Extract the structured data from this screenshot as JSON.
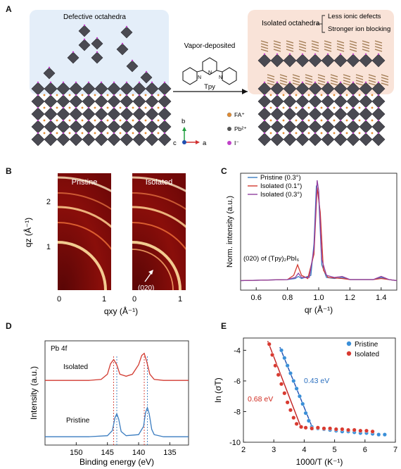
{
  "panelA": {
    "letter": "A",
    "left_title": "Defective octahedra",
    "right_title": "Isolated octahedra",
    "benefit1": "Less ionic defects",
    "benefit2": "Stronger ion blocking",
    "process": "Vapor-deposited",
    "molecule": "Tpy",
    "axis_b": "b",
    "axis_c": "c",
    "axis_a": "a",
    "legend": [
      "FA⁺",
      "Pb²⁺",
      "I⁻"
    ],
    "colors": {
      "left_bg": "#e4eef9",
      "right_bg": "#f9e3d8",
      "octa": "#4a4a52",
      "iodide": "#c040c8",
      "fa": "#e08a30"
    }
  },
  "panelB": {
    "letter": "B",
    "left_label": "Pristine",
    "right_label": "Isolated",
    "annotation": "(020)",
    "ylabel": "qz (Å⁻¹)",
    "xlabel": "qxy (Å⁻¹)",
    "yticks": [
      "2",
      "1"
    ],
    "xticks_left": [
      "0",
      "1"
    ],
    "xticks_right": [
      "0",
      "1"
    ]
  },
  "panelC": {
    "letter": "C",
    "annotation": "(020) of (Tpy)₂PbI₆",
    "legend_pristine": "Pristine (0.3°)",
    "legend_iso01": "Isolated (0.1°)",
    "legend_iso03": "Isolated (0.3°)",
    "xlabel": "qr (Å⁻¹)",
    "ylabel": "Norm. intensity (a.u.)"
  },
  "panelD": {
    "letter": "D",
    "label": "Pb 4f",
    "isolated": "Isolated",
    "pristine": "Pristine",
    "xlabel": "Binding energy (eV)",
    "ylabel": "Intensity (a.u.)"
  },
  "panelE": {
    "letter": "E",
    "legend_pristine": "Pristine",
    "legend_isolated": "Isolated",
    "ea_pristine": "0.43 eV",
    "ea_isolated": "0.68 eV",
    "xlabel": "1000/T (K⁻¹)",
    "ylabel": "ln (σT)"
  },
  "chart_data": [
    {
      "panel": "C",
      "type": "line",
      "xlim": [
        0.5,
        1.5
      ],
      "xticks": [
        0.6,
        0.8,
        1.0,
        1.2,
        1.4
      ],
      "series": [
        {
          "name": "Pristine (0.3°)",
          "color": "#3a7cc0",
          "x": [
            0.5,
            0.8,
            0.85,
            0.87,
            0.89,
            0.95,
            0.97,
            0.985,
            1.0,
            1.02,
            1.05,
            1.1,
            1.15,
            1.2,
            1.35,
            1.4,
            1.45,
            1.5
          ],
          "y": [
            0.05,
            0.06,
            0.07,
            0.09,
            0.07,
            0.1,
            0.4,
            0.95,
            0.85,
            0.2,
            0.08,
            0.07,
            0.08,
            0.06,
            0.06,
            0.08,
            0.06,
            0.05
          ]
        },
        {
          "name": "Isolated (0.1°)",
          "color": "#d23a30",
          "x": [
            0.5,
            0.8,
            0.84,
            0.865,
            0.89,
            0.93,
            0.97,
            0.99,
            1.01,
            1.03,
            1.06,
            1.15,
            1.2,
            1.35,
            1.4,
            1.45,
            1.5
          ],
          "y": [
            0.05,
            0.06,
            0.1,
            0.2,
            0.1,
            0.07,
            0.3,
            0.93,
            0.7,
            0.15,
            0.08,
            0.07,
            0.06,
            0.06,
            0.07,
            0.06,
            0.05
          ]
        },
        {
          "name": "Isolated (0.3°)",
          "color": "#9040a0",
          "x": [
            0.5,
            0.8,
            0.85,
            0.87,
            0.89,
            0.94,
            0.97,
            0.99,
            1.0,
            1.02,
            1.05,
            1.1,
            1.15,
            1.2,
            1.35,
            1.4,
            1.45,
            1.5
          ],
          "y": [
            0.05,
            0.06,
            0.08,
            0.12,
            0.08,
            0.08,
            0.35,
            1.0,
            0.9,
            0.25,
            0.1,
            0.08,
            0.09,
            0.06,
            0.06,
            0.09,
            0.06,
            0.05
          ]
        }
      ]
    },
    {
      "panel": "D",
      "type": "line",
      "xlim": [
        155,
        132
      ],
      "xticks": [
        150,
        145,
        140,
        135
      ],
      "reference_lines": [
        144.0,
        139.1,
        143.5,
        138.6
      ],
      "series": [
        {
          "name": "Isolated",
          "color": "#d23a30",
          "x": [
            155,
            148,
            146,
            145,
            144.5,
            144.0,
            143.5,
            143.0,
            142,
            141,
            140,
            139.5,
            139.1,
            138.7,
            138.2,
            137.5,
            136,
            132
          ],
          "y": [
            0.62,
            0.62,
            0.63,
            0.68,
            0.78,
            0.82,
            0.77,
            0.68,
            0.66,
            0.68,
            0.77,
            0.86,
            0.88,
            0.8,
            0.68,
            0.63,
            0.62,
            0.62
          ]
        },
        {
          "name": "Pristine",
          "color": "#3a7cc0",
          "x": [
            155,
            148,
            145,
            144.2,
            143.8,
            143.5,
            143.2,
            142.8,
            142,
            140,
            139.2,
            138.9,
            138.6,
            138.3,
            137.9,
            137.5,
            136,
            132
          ],
          "y": [
            0.08,
            0.08,
            0.09,
            0.14,
            0.26,
            0.3,
            0.25,
            0.13,
            0.09,
            0.1,
            0.18,
            0.31,
            0.36,
            0.3,
            0.15,
            0.1,
            0.08,
            0.08
          ]
        }
      ]
    },
    {
      "panel": "E",
      "type": "scatter",
      "xlim": [
        2,
        7
      ],
      "ylim": [
        -10,
        -3.2
      ],
      "xticks": [
        2,
        3,
        4,
        5,
        6,
        7
      ],
      "yticks": [
        -4,
        -6,
        -8,
        -10
      ],
      "series": [
        {
          "name": "Pristine",
          "color": "#3a8fd8",
          "x": [
            3.25,
            3.35,
            3.45,
            3.55,
            3.65,
            3.75,
            3.85,
            3.95,
            4.05,
            4.15,
            4.25,
            4.45,
            4.65,
            4.85,
            5.05,
            5.25,
            5.45,
            5.65,
            5.85,
            6.05,
            6.25,
            6.45,
            6.65
          ],
          "y": [
            -4.0,
            -4.5,
            -5.0,
            -5.5,
            -6.0,
            -6.5,
            -7.0,
            -7.5,
            -8.1,
            -8.6,
            -9.0,
            -9.1,
            -9.15,
            -9.2,
            -9.25,
            -9.3,
            -9.3,
            -9.35,
            -9.4,
            -9.4,
            -9.45,
            -9.5,
            -9.5
          ]
        },
        {
          "name": "Isolated",
          "color": "#d83a30",
          "x": [
            2.85,
            2.95,
            3.05,
            3.15,
            3.25,
            3.35,
            3.45,
            3.55,
            3.65,
            3.75,
            3.9,
            4.05,
            4.25,
            4.45,
            4.65,
            4.85,
            5.05,
            5.25,
            5.45,
            5.65,
            5.85,
            6.05,
            6.25
          ],
          "y": [
            -3.6,
            -4.3,
            -5.0,
            -5.6,
            -6.2,
            -6.8,
            -7.4,
            -7.9,
            -8.4,
            -8.8,
            -9.0,
            -9.05,
            -9.1,
            -9.05,
            -9.1,
            -9.1,
            -9.15,
            -9.15,
            -9.2,
            -9.2,
            -9.25,
            -9.25,
            -9.3
          ]
        }
      ],
      "fits": [
        {
          "series": "Pristine",
          "x": [
            3.2,
            4.3
          ],
          "y": [
            -3.8,
            -9.2
          ],
          "color": "#1f4fb0"
        },
        {
          "series": "Isolated",
          "x": [
            2.8,
            3.9
          ],
          "y": [
            -3.4,
            -9.05
          ],
          "color": "#c22020"
        }
      ]
    }
  ]
}
